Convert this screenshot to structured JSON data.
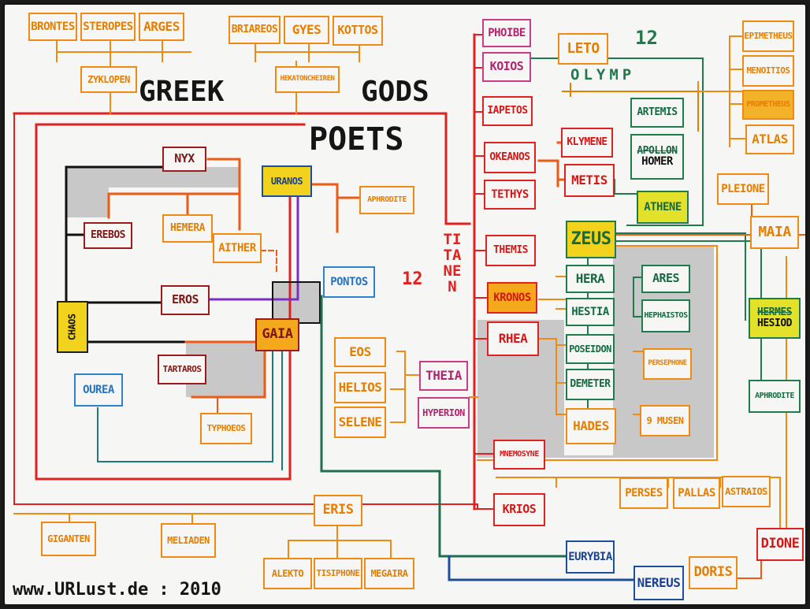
{
  "title": "GREEK",
  "title2": "GODS",
  "subtitle": "POETS",
  "count_olymp": "12",
  "olymp_label": "OLYMP",
  "count_titans": "12",
  "titans_label": "TITANEN",
  "footer": "www.URLust.de  :  2010",
  "nodes": {
    "brontes": "BRONTES",
    "steropes": "STEROPES",
    "arges": "ARGES",
    "zyklopen": "ZYKLOPEN",
    "briareos": "BRIAREOS",
    "gyes": "GYES",
    "kottos": "KOTTOS",
    "hekatoncheiren": "HEKATONCHEIREN",
    "nyx": "NYX",
    "erebos": "EREBOS",
    "hemera": "HEMERA",
    "aither": "AITHER",
    "eros": "EROS",
    "chaos": "CHAOS",
    "gaia": "GAIA",
    "tartaros": "TARTAROS",
    "ourea": "OUREA",
    "typhoeos": "TYPHOEOS",
    "uranos": "URANOS",
    "aphrodite_left": "APHRODITE",
    "pontos": "PONTOS",
    "eos": "EOS",
    "helios": "HELIOS",
    "selene": "SELENE",
    "theia": "THEIA",
    "hyperion": "HYPERION",
    "phoibe": "PHOIBE",
    "koios": "KOIOS",
    "iapetos": "IAPETOS",
    "okeanos": "OKEANOS",
    "tethys": "TETHYS",
    "themis": "THEMIS",
    "kronos": "KRONOS",
    "rhea": "RHEA",
    "mnemosyne": "MNEMOSYNE",
    "krios": "KRIOS",
    "leto": "LETO",
    "klymene": "KLYMENE",
    "metis": "METIS",
    "artemis": "ARTEMIS",
    "apollon": "APOLLON",
    "homer": "HOMER",
    "athene": "ATHENE",
    "zeus": "ZEUS",
    "hera": "HERA",
    "ares": "ARES",
    "hestia": "HESTIA",
    "hephaistos": "HEPHAISTOS",
    "poseidon": "POSEIDON",
    "persephone": "PERSEPHONE",
    "demeter": "DEMETER",
    "hades": "HADES",
    "musen": "9 MUSEN",
    "epimetheus": "EPIMETHEUS",
    "menoitios": "MENOITIOS",
    "prometheus": "PROMETHEUS",
    "atlas": "ATLAS",
    "pleione": "PLEIONE",
    "maia": "MAIA",
    "hermes": "HERMES",
    "hesiod": "HESIOD",
    "aphrodite_right": "APHRODITE",
    "perses": "PERSES",
    "pallas": "PALLAS",
    "astraios": "ASTRAIOS",
    "dione": "DIONE",
    "doris": "DORIS",
    "eurybia": "EURYBIA",
    "nereus": "NEREUS",
    "eris": "ERIS",
    "giganten": "GIGANTEN",
    "meliaden": "MELIADEN",
    "alekto": "ALEKTO",
    "tisiphone": "TISIPHONE",
    "megaira": "MEGAIRA"
  }
}
